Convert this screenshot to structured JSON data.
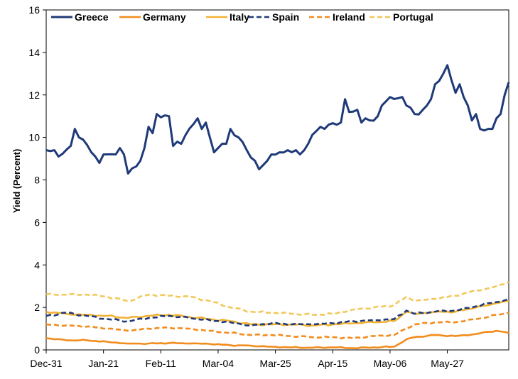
{
  "chart_data": {
    "type": "line",
    "title": "",
    "xlabel": "",
    "ylabel": "Yield (Percent)",
    "ylim": [
      0,
      16
    ],
    "yticks": [
      0,
      2,
      4,
      6,
      8,
      10,
      12,
      14,
      16
    ],
    "xtick_labels": [
      "Dec-31",
      "Jan-21",
      "Feb-11",
      "Mar-04",
      "Mar-25",
      "Apr-15",
      "May-06",
      "May-27"
    ],
    "xtick_index": [
      0,
      14,
      28,
      42,
      56,
      70,
      84,
      98
    ],
    "n_points": 114,
    "grid": false,
    "legend_position": "top",
    "series": [
      {
        "name": "Greece",
        "color": "#1f3a78",
        "dash": "solid",
        "anchors": [
          [
            0,
            9.4
          ],
          [
            2,
            9.4
          ],
          [
            3,
            9.1
          ],
          [
            6,
            9.6
          ],
          [
            7,
            10.4
          ],
          [
            8,
            10.0
          ],
          [
            9,
            9.9
          ],
          [
            12,
            9.1
          ],
          [
            13,
            8.8
          ],
          [
            14,
            9.2
          ],
          [
            17,
            9.2
          ],
          [
            18,
            9.5
          ],
          [
            19,
            9.2
          ],
          [
            20,
            8.3
          ],
          [
            23,
            8.9
          ],
          [
            24,
            9.5
          ],
          [
            25,
            10.5
          ],
          [
            26,
            10.2
          ],
          [
            27,
            11.1
          ],
          [
            30,
            11.0
          ],
          [
            31,
            9.6
          ],
          [
            32,
            9.8
          ],
          [
            33,
            9.7
          ],
          [
            34,
            10.1
          ],
          [
            37,
            10.9
          ],
          [
            38,
            10.4
          ],
          [
            39,
            10.7
          ],
          [
            41,
            9.3
          ],
          [
            42,
            9.5
          ],
          [
            44,
            9.7
          ],
          [
            45,
            10.4
          ],
          [
            46,
            10.1
          ],
          [
            47,
            10.0
          ],
          [
            49,
            9.4
          ],
          [
            51,
            8.9
          ],
          [
            52,
            8.5
          ],
          [
            54,
            8.9
          ],
          [
            55,
            9.2
          ],
          [
            57,
            9.3
          ],
          [
            59,
            9.4
          ],
          [
            60,
            9.3
          ],
          [
            61,
            9.4
          ],
          [
            62,
            9.2
          ],
          [
            64,
            9.7
          ],
          [
            66,
            10.3
          ],
          [
            67,
            10.5
          ],
          [
            68,
            10.4
          ],
          [
            69,
            10.6
          ],
          [
            71,
            10.6
          ],
          [
            72,
            10.7
          ],
          [
            73,
            11.8
          ],
          [
            74,
            11.2
          ],
          [
            76,
            11.3
          ],
          [
            77,
            10.7
          ],
          [
            78,
            10.9
          ],
          [
            79,
            10.8
          ],
          [
            81,
            11.0
          ],
          [
            82,
            11.5
          ],
          [
            84,
            11.9
          ],
          [
            87,
            11.9
          ],
          [
            88,
            11.5
          ],
          [
            89,
            11.4
          ],
          [
            90,
            11.1
          ],
          [
            92,
            11.3
          ],
          [
            93,
            11.5
          ],
          [
            94,
            11.8
          ],
          [
            95,
            12.5
          ],
          [
            97,
            13.0
          ],
          [
            98,
            13.4
          ],
          [
            99,
            12.7
          ],
          [
            100,
            12.1
          ],
          [
            101,
            12.5
          ],
          [
            103,
            11.5
          ],
          [
            104,
            10.8
          ],
          [
            105,
            11.1
          ],
          [
            106,
            10.4
          ],
          [
            108,
            10.4
          ],
          [
            109,
            10.4
          ],
          [
            110,
            10.9
          ],
          [
            111,
            11.1
          ],
          [
            112,
            12.0
          ],
          [
            113,
            12.6
          ]
        ]
      },
      {
        "name": "Germany",
        "color": "#f28c1c",
        "dash": "solid",
        "anchors": [
          [
            0,
            0.55
          ],
          [
            5,
            0.45
          ],
          [
            10,
            0.45
          ],
          [
            15,
            0.38
          ],
          [
            20,
            0.3
          ],
          [
            25,
            0.3
          ],
          [
            30,
            0.32
          ],
          [
            35,
            0.3
          ],
          [
            40,
            0.28
          ],
          [
            45,
            0.22
          ],
          [
            50,
            0.2
          ],
          [
            55,
            0.15
          ],
          [
            60,
            0.12
          ],
          [
            65,
            0.1
          ],
          [
            70,
            0.12
          ],
          [
            75,
            0.08
          ],
          [
            80,
            0.12
          ],
          [
            85,
            0.15
          ],
          [
            88,
            0.5
          ],
          [
            90,
            0.6
          ],
          [
            95,
            0.7
          ],
          [
            100,
            0.65
          ],
          [
            105,
            0.75
          ],
          [
            108,
            0.85
          ],
          [
            110,
            0.9
          ],
          [
            113,
            0.8
          ]
        ]
      },
      {
        "name": "Italy",
        "color": "#f2b233",
        "dash": "solid",
        "anchors": [
          [
            0,
            1.8
          ],
          [
            5,
            1.7
          ],
          [
            10,
            1.65
          ],
          [
            15,
            1.6
          ],
          [
            20,
            1.5
          ],
          [
            25,
            1.6
          ],
          [
            30,
            1.65
          ],
          [
            35,
            1.55
          ],
          [
            40,
            1.45
          ],
          [
            45,
            1.35
          ],
          [
            50,
            1.2
          ],
          [
            55,
            1.2
          ],
          [
            60,
            1.2
          ],
          [
            65,
            1.15
          ],
          [
            70,
            1.2
          ],
          [
            75,
            1.25
          ],
          [
            80,
            1.3
          ],
          [
            85,
            1.35
          ],
          [
            88,
            1.8
          ],
          [
            90,
            1.7
          ],
          [
            95,
            1.8
          ],
          [
            100,
            1.8
          ],
          [
            105,
            2.0
          ],
          [
            108,
            2.1
          ],
          [
            110,
            2.2
          ],
          [
            113,
            2.3
          ]
        ]
      },
      {
        "name": "Spain",
        "color": "#1f3a78",
        "dash": "dash",
        "anchors": [
          [
            0,
            1.6
          ],
          [
            5,
            1.75
          ],
          [
            10,
            1.6
          ],
          [
            15,
            1.45
          ],
          [
            20,
            1.35
          ],
          [
            25,
            1.5
          ],
          [
            30,
            1.6
          ],
          [
            35,
            1.5
          ],
          [
            40,
            1.4
          ],
          [
            45,
            1.3
          ],
          [
            50,
            1.15
          ],
          [
            55,
            1.25
          ],
          [
            60,
            1.2
          ],
          [
            65,
            1.2
          ],
          [
            70,
            1.25
          ],
          [
            75,
            1.35
          ],
          [
            80,
            1.4
          ],
          [
            85,
            1.45
          ],
          [
            88,
            1.85
          ],
          [
            90,
            1.7
          ],
          [
            95,
            1.8
          ],
          [
            100,
            1.85
          ],
          [
            105,
            2.05
          ],
          [
            108,
            2.2
          ],
          [
            110,
            2.25
          ],
          [
            113,
            2.4
          ]
        ]
      },
      {
        "name": "Ireland",
        "color": "#f28c1c",
        "dash": "dash",
        "anchors": [
          [
            0,
            1.2
          ],
          [
            5,
            1.15
          ],
          [
            10,
            1.1
          ],
          [
            15,
            1.0
          ],
          [
            20,
            0.9
          ],
          [
            25,
            1.0
          ],
          [
            30,
            1.05
          ],
          [
            35,
            1.0
          ],
          [
            40,
            0.9
          ],
          [
            45,
            0.8
          ],
          [
            50,
            0.7
          ],
          [
            55,
            0.7
          ],
          [
            60,
            0.65
          ],
          [
            65,
            0.6
          ],
          [
            70,
            0.6
          ],
          [
            75,
            0.55
          ],
          [
            80,
            0.65
          ],
          [
            85,
            0.7
          ],
          [
            88,
            1.0
          ],
          [
            90,
            1.2
          ],
          [
            95,
            1.3
          ],
          [
            100,
            1.3
          ],
          [
            105,
            1.45
          ],
          [
            108,
            1.55
          ],
          [
            110,
            1.65
          ],
          [
            113,
            1.75
          ]
        ]
      },
      {
        "name": "Portugal",
        "color": "#f2c85a",
        "dash": "dash",
        "anchors": [
          [
            0,
            2.6
          ],
          [
            5,
            2.6
          ],
          [
            10,
            2.6
          ],
          [
            15,
            2.5
          ],
          [
            20,
            2.3
          ],
          [
            25,
            2.6
          ],
          [
            30,
            2.55
          ],
          [
            35,
            2.5
          ],
          [
            40,
            2.3
          ],
          [
            45,
            2.0
          ],
          [
            50,
            1.8
          ],
          [
            55,
            1.75
          ],
          [
            60,
            1.7
          ],
          [
            65,
            1.65
          ],
          [
            70,
            1.7
          ],
          [
            75,
            1.9
          ],
          [
            80,
            2.0
          ],
          [
            85,
            2.1
          ],
          [
            88,
            2.5
          ],
          [
            90,
            2.3
          ],
          [
            95,
            2.4
          ],
          [
            100,
            2.55
          ],
          [
            105,
            2.8
          ],
          [
            108,
            2.9
          ],
          [
            110,
            3.0
          ],
          [
            113,
            3.2
          ]
        ]
      }
    ]
  }
}
